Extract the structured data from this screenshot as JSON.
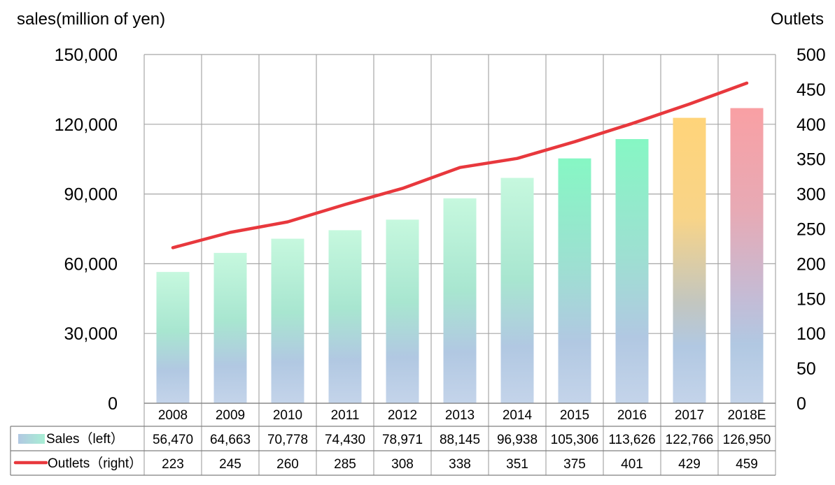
{
  "chart_data": {
    "type": "bar",
    "ylabel_left": "sales(million of yen)",
    "ylabel_right": "Outlets",
    "categories": [
      "2008",
      "2009",
      "2010",
      "2011",
      "2012",
      "2013",
      "2014",
      "2015",
      "2016",
      "2017",
      "2018E"
    ],
    "series": [
      {
        "name": "Sales（left）",
        "type": "bar",
        "axis": "left",
        "values": [
          56470,
          64663,
          70778,
          74430,
          78971,
          88145,
          96938,
          105306,
          113626,
          122766,
          126950
        ],
        "value_labels": [
          "56,470",
          "64,663",
          "70,778",
          "74,430",
          "78,971",
          "88,145",
          "96,938",
          "105,306",
          "113,626",
          "122,766",
          "126,950"
        ]
      },
      {
        "name": "Outlets（right）",
        "type": "line",
        "axis": "right",
        "color": "#e8383d",
        "values": [
          223,
          245,
          260,
          285,
          308,
          338,
          351,
          375,
          401,
          429,
          459
        ]
      }
    ],
    "ylim_left": [
      0,
      150000
    ],
    "yticks_left": [
      "0",
      "30,000",
      "60,000",
      "90,000",
      "120,000",
      "150,000"
    ],
    "ylim_right": [
      0,
      500
    ],
    "yticks_right": [
      "0",
      "50",
      "100",
      "150",
      "200",
      "250",
      "300",
      "350",
      "400",
      "450",
      "500"
    ],
    "grid": true,
    "data_table": true,
    "colors": {
      "bar_top_green": "#b8f5d6",
      "bar_bottom_blue": "#b3c6e2",
      "bar_2015_2016_top": "#7ef5c0",
      "bar_2017_top": "#ffd27a",
      "bar_2018_top": "#f89ea2",
      "grid": "#a6a6a6",
      "line": "#e8383d"
    }
  }
}
